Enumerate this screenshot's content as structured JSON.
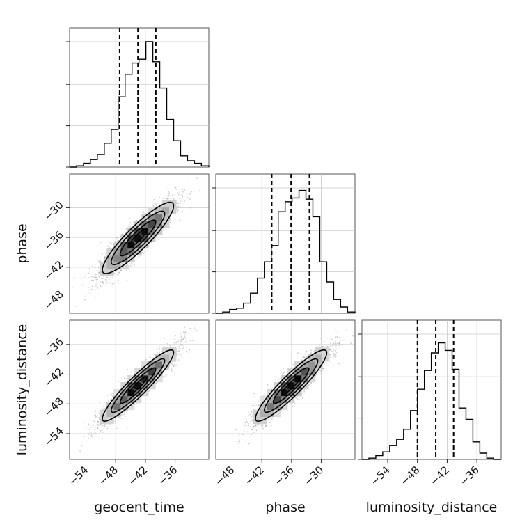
{
  "chart_data": {
    "type": "corner",
    "parameters": [
      "geocent_time",
      "phase",
      "luminosity_distance"
    ],
    "axis_labels": {
      "x": [
        "geocent_time",
        "phase",
        "luminosity_distance"
      ],
      "y": [
        "",
        "phase",
        "luminosity_distance"
      ]
    },
    "ranges": {
      "geocent_time": [
        -57.3,
        -29.2
      ],
      "phase": [
        -51.3,
        -23.2
      ],
      "luminosity_distance": [
        -59.2,
        -31.1
      ]
    },
    "ticks": {
      "geocent_time": [
        -54,
        -48,
        -42,
        -36
      ],
      "phase": [
        -48,
        -42,
        -36,
        -30
      ],
      "luminosity_distance": [
        -54,
        -48,
        -42,
        -36
      ]
    },
    "tick_labels": {
      "geocent_time": [
        "−54",
        "−48",
        "−42",
        "−36"
      ],
      "phase": [
        "−48",
        "−42",
        "−36",
        "−30"
      ],
      "luminosity_distance": [
        "−54",
        "−48",
        "−42",
        "−36"
      ]
    },
    "marginals": [
      {
        "parameter": "geocent_time",
        "bins": [
          -57.3,
          -55.9,
          -54.5,
          -53.1,
          -51.7,
          -50.3,
          -48.9,
          -47.5,
          -46.1,
          -44.7,
          -43.3,
          -41.9,
          -40.5,
          -39.1,
          -37.7,
          -36.3,
          -34.9,
          -33.5,
          -32.1,
          -30.7,
          -29.2
        ],
        "counts": [
          0.0,
          0.01,
          0.03,
          0.06,
          0.1,
          0.19,
          0.3,
          0.56,
          0.74,
          0.83,
          0.86,
          1.0,
          0.84,
          0.63,
          0.38,
          0.21,
          0.09,
          0.05,
          0.03,
          0.01
        ],
        "quantiles": [
          -47.2,
          -43.5,
          -39.9
        ]
      },
      {
        "parameter": "phase",
        "bins": [
          -51.3,
          -49.9,
          -48.5,
          -47.1,
          -45.7,
          -44.3,
          -42.9,
          -41.5,
          -40.1,
          -38.7,
          -37.3,
          -35.9,
          -34.5,
          -33.1,
          -31.7,
          -30.3,
          -28.9,
          -27.5,
          -26.1,
          -24.7,
          -23.2
        ],
        "counts": [
          0.0,
          0.01,
          0.03,
          0.04,
          0.08,
          0.16,
          0.28,
          0.41,
          0.54,
          0.81,
          0.89,
          0.92,
          0.98,
          0.91,
          0.77,
          0.41,
          0.25,
          0.11,
          0.05,
          0.01
        ],
        "quantiles": [
          -40.0,
          -36.1,
          -32.4
        ]
      },
      {
        "parameter": "luminosity_distance",
        "bins": [
          -59.2,
          -57.8,
          -56.4,
          -55.0,
          -53.6,
          -52.2,
          -50.8,
          -49.4,
          -48.0,
          -46.6,
          -45.2,
          -43.8,
          -42.4,
          -41.0,
          -39.6,
          -38.2,
          -36.8,
          -35.4,
          -34.0,
          -32.6,
          -31.1
        ],
        "counts": [
          0.0,
          0.01,
          0.03,
          0.06,
          0.11,
          0.16,
          0.24,
          0.39,
          0.56,
          0.71,
          0.85,
          0.93,
          0.87,
          0.72,
          0.41,
          0.32,
          0.14,
          0.05,
          0.01,
          0.0
        ],
        "quantiles": [
          -48.0,
          -44.3,
          -40.7
        ]
      }
    ],
    "joint_2d": [
      {
        "x": "geocent_time",
        "y": "phase",
        "center": [
          -43.5,
          -36.1
        ],
        "sd": [
          3.6,
          3.6
        ],
        "correlation": 0.9
      },
      {
        "x": "geocent_time",
        "y": "luminosity_distance",
        "center": [
          -43.5,
          -44.3
        ],
        "sd": [
          3.6,
          3.6
        ],
        "correlation": 0.93
      },
      {
        "x": "phase",
        "y": "luminosity_distance",
        "center": [
          -36.1,
          -44.3
        ],
        "sd": [
          3.6,
          3.6
        ],
        "correlation": 0.92
      }
    ],
    "contour_levels_sigma": [
      0.5,
      1.0,
      1.5,
      2.0
    ],
    "grid": true,
    "colors": {
      "line": "#000000",
      "points": "#777777",
      "frame": "#555555",
      "grid": "#c8c8c8"
    }
  }
}
